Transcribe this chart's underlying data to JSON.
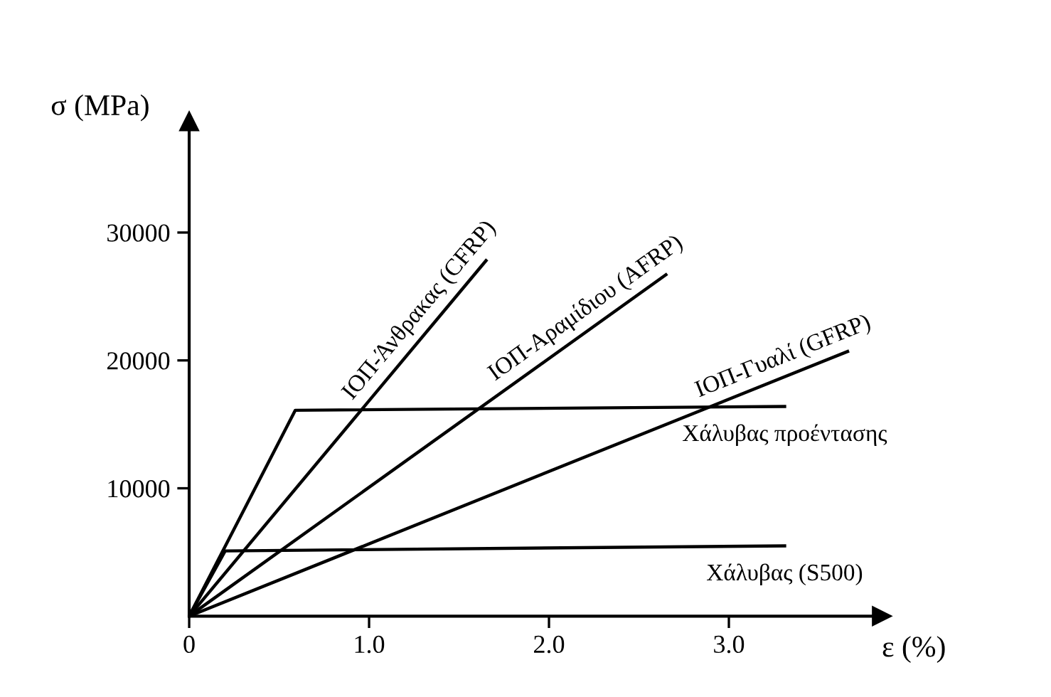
{
  "chart_data": {
    "type": "line",
    "xlabel": "ε (%)",
    "ylabel": "σ (MPa)",
    "xlim": [
      0,
      3.85
    ],
    "ylim": [
      0,
      38700
    ],
    "xticks": [
      {
        "value": 0,
        "label": "0"
      },
      {
        "value": 1,
        "label": "1.0"
      },
      {
        "value": 2,
        "label": "2.0"
      },
      {
        "value": 3,
        "label": "3.0"
      }
    ],
    "yticks": [
      10000,
      20000,
      30000
    ],
    "grid": false,
    "legend": false,
    "marker": "none",
    "line_style": "solid",
    "series": [
      {
        "name": "ΙΟΠ-Άνθρακας (CFRP)",
        "color": "#000000",
        "x": [
          0,
          1.65
        ],
        "values": [
          0,
          27800
        ]
      },
      {
        "name": "ΙΟΠ-Αραμίδιου (AFRP)",
        "color": "#000000",
        "x": [
          0,
          2.65
        ],
        "values": [
          0,
          26700
        ]
      },
      {
        "name": "ΙΟΠ-Γυαλί (GFRP)",
        "color": "#000000",
        "x": [
          0,
          3.66
        ],
        "values": [
          0,
          20700
        ]
      },
      {
        "name": "Χάλυβας προέντασης",
        "color": "#000000",
        "x": [
          0,
          0.59,
          3.31
        ],
        "values": [
          0,
          16100,
          16400
        ]
      },
      {
        "name": "Χάλυβας (S500)",
        "color": "#000000",
        "x": [
          0,
          0.2,
          3.31
        ],
        "values": [
          0,
          5100,
          5500
        ]
      }
    ]
  }
}
